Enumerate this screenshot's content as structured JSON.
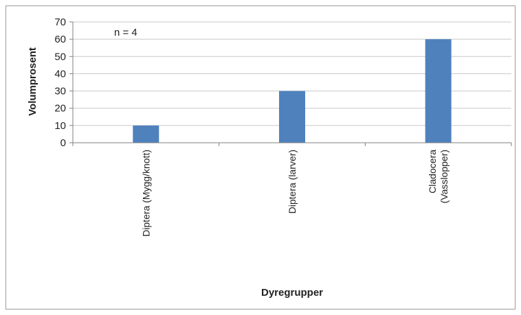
{
  "chart_data": {
    "type": "bar",
    "title": "",
    "categories": [
      [
        "Diptera (Mygg/knott)"
      ],
      [
        "Diptera (larver)"
      ],
      [
        "Cladocera",
        "(Vasslopper)"
      ]
    ],
    "values": [
      10,
      30,
      60
    ],
    "xlabel": "Dyregrupper",
    "ylabel": "Volumprosent",
    "ylim": [
      0,
      70
    ],
    "yticks": [
      0,
      10,
      20,
      30,
      40,
      50,
      60,
      70
    ],
    "grid": true,
    "legend": "none",
    "annotation": "n = 4",
    "bar_color": "#4f81bd"
  }
}
